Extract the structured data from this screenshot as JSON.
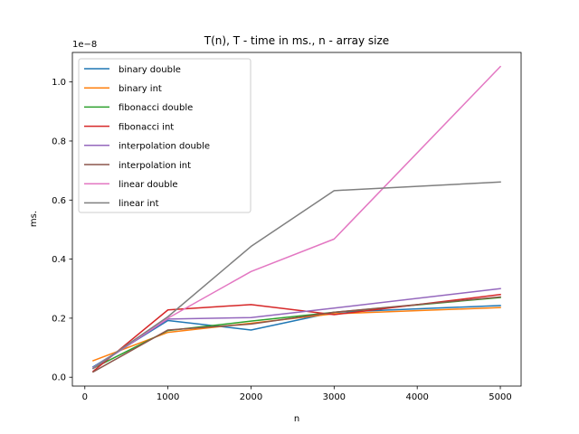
{
  "chart_data": {
    "type": "line",
    "title": "T(n), T - time in ms., n - array size",
    "xlabel": "n",
    "ylabel": "ms.",
    "y_offset_label": "1e−8",
    "y_scale_factor": 1e-08,
    "xlim": [
      -150,
      5250
    ],
    "ylim": [
      -0.03,
      1.1
    ],
    "x_ticks": [
      0,
      1000,
      2000,
      3000,
      4000,
      5000
    ],
    "x_tick_labels": [
      "0",
      "1000",
      "2000",
      "3000",
      "4000",
      "5000"
    ],
    "y_ticks": [
      0.0,
      0.2,
      0.4,
      0.6,
      0.8,
      1.0
    ],
    "y_tick_labels": [
      "0.0",
      "0.2",
      "0.4",
      "0.6",
      "0.8",
      "1.0"
    ],
    "grid": false,
    "legend_position": "top-left",
    "x": [
      100,
      1000,
      2000,
      3000,
      5000
    ],
    "series": [
      {
        "name": "binary double",
        "color": "#1f77b4",
        "values": [
          0.035,
          0.192,
          0.16,
          0.22,
          0.243
        ]
      },
      {
        "name": "binary int",
        "color": "#ff7f0e",
        "values": [
          0.056,
          0.152,
          0.183,
          0.215,
          0.236
        ]
      },
      {
        "name": "fibonacci double",
        "color": "#2ca02c",
        "values": [
          0.03,
          0.158,
          0.19,
          0.22,
          0.27
        ]
      },
      {
        "name": "fibonacci int",
        "color": "#d62728",
        "values": [
          0.02,
          0.228,
          0.246,
          0.212,
          0.28
        ]
      },
      {
        "name": "interpolation double",
        "color": "#9467bd",
        "values": [
          0.03,
          0.197,
          0.202,
          0.234,
          0.3
        ]
      },
      {
        "name": "interpolation int",
        "color": "#8c564b",
        "values": [
          0.018,
          0.16,
          0.18,
          0.22,
          0.272
        ]
      },
      {
        "name": "linear double",
        "color": "#e377c2",
        "values": [
          0.032,
          0.2,
          0.358,
          0.468,
          1.052
        ]
      },
      {
        "name": "linear int",
        "color": "#7f7f7f",
        "values": [
          0.03,
          0.205,
          0.443,
          0.632,
          0.661
        ]
      }
    ]
  }
}
